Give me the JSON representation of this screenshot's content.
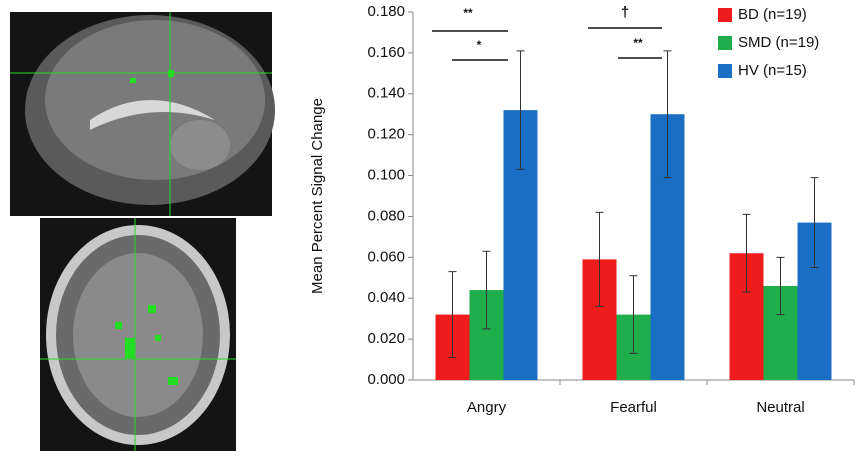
{
  "chart_data": {
    "type": "bar",
    "ylabel": "Mean Percent Signal Change",
    "categories": [
      "Angry",
      "Fearful",
      "Neutral"
    ],
    "series": [
      {
        "name": "BD (n=19)",
        "color": "#ee1c1c",
        "values": [
          0.032,
          0.059,
          0.062
        ],
        "errors": [
          0.021,
          0.023,
          0.019
        ]
      },
      {
        "name": "SMD (n=19)",
        "color": "#1fae4b",
        "values": [
          0.044,
          0.032,
          0.046
        ],
        "errors": [
          0.019,
          0.019,
          0.014
        ]
      },
      {
        "name": "HV (n=15)",
        "color": "#1a6fc4",
        "values": [
          0.132,
          0.13,
          0.077
        ],
        "errors": [
          0.029,
          0.031,
          0.022
        ]
      }
    ],
    "ylim": [
      0,
      0.18
    ],
    "yticks": [
      {
        "value": 0,
        "label": "0.000"
      },
      {
        "value": 0.02,
        "label": "0.020"
      },
      {
        "value": 0.04,
        "label": "0.040"
      },
      {
        "value": 0.06,
        "label": "0.060"
      },
      {
        "value": 0.08,
        "label": "0.080"
      },
      {
        "value": 0.1,
        "label": "0.100"
      },
      {
        "value": 0.12,
        "label": "0.120"
      },
      {
        "value": 0.14,
        "label": "0.140"
      },
      {
        "value": 0.16,
        "label": "0.160"
      },
      {
        "value": 0.18,
        "label": "0.180"
      }
    ],
    "legend": "upper right",
    "annotations": [
      "**",
      "*",
      "†",
      "**"
    ]
  }
}
